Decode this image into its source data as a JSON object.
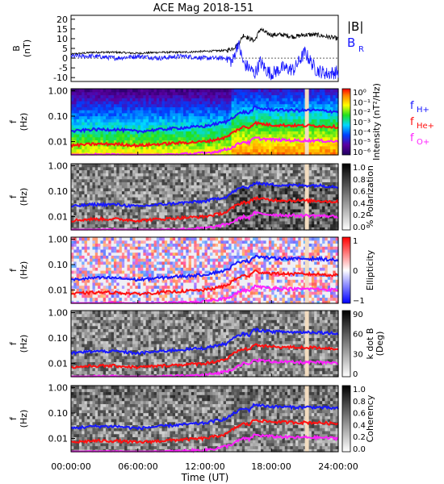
{
  "title": "ACE Mag 2018-151",
  "time_axis": {
    "label": "Time (UT)",
    "ticks": [
      "00:00:00",
      "06:00:00",
      "12:00:00",
      "18:00:00",
      "24:00:00"
    ]
  },
  "colors": {
    "black": "#000000",
    "blue": "#1818ff",
    "red": "#ff1010",
    "magenta": "#ff20ff",
    "gap": "#f2dcc0"
  },
  "chart_data": [
    {
      "type": "line",
      "panel": "B",
      "ylabel": [
        "B",
        "(nT)"
      ],
      "ylim": [
        -12,
        22
      ],
      "y_ticks": [
        "20",
        "15",
        "10",
        "5",
        "0",
        "-5",
        "-10"
      ],
      "legend": [
        {
          "name": "|B|",
          "color": "#000000"
        },
        {
          "name": "B",
          "sub": "R",
          "color": "#1818ff"
        }
      ],
      "x": [
        0,
        2,
        4,
        6,
        8,
        10,
        12,
        14,
        14.5,
        15,
        15.5,
        16,
        16.5,
        17,
        17.5,
        18,
        19,
        20,
        21,
        22,
        23,
        24
      ],
      "series": [
        {
          "name": "|B|",
          "values": [
            2,
            3,
            3,
            2.5,
            3,
            3,
            3.5,
            4,
            5,
            7,
            12,
            10,
            9,
            15,
            13,
            12,
            12,
            11,
            12,
            12,
            11,
            10
          ]
        },
        {
          "name": "B",
          "values": [
            1,
            1,
            0,
            1,
            0,
            1,
            0,
            0,
            -2,
            8,
            -3,
            -5,
            -8,
            -2,
            -6,
            -8,
            -5,
            -6,
            3,
            -6,
            -8,
            -7
          ]
        }
      ]
    },
    {
      "type": "heatmap",
      "panel": "intensity",
      "ylabel": [
        "f",
        "(Hz)"
      ],
      "y_ticks": [
        "1.00",
        "0.10",
        "0.01"
      ],
      "colorbar": {
        "label": "Intensity (nT²/Hz)",
        "ticks": [
          "10⁰",
          "10⁻¹",
          "10⁻²",
          "10⁻³",
          "10⁻⁴",
          "10⁻⁵",
          "10⁻⁶"
        ]
      },
      "legend": [
        {
          "name": "f",
          "sub": "H+",
          "color": "#1818ff"
        },
        {
          "name": "f",
          "sub": "He+",
          "color": "#ff1010"
        },
        {
          "name": "f",
          "sub": "O+",
          "color": "#ff20ff"
        }
      ]
    },
    {
      "type": "heatmap",
      "panel": "polarization",
      "ylabel": [
        "f",
        "(Hz)"
      ],
      "y_ticks": [
        "1.00",
        "0.10",
        "0.01"
      ],
      "colorbar": {
        "label": "% Polarization",
        "ticks": [
          "1.0",
          "0.8",
          "0.6",
          "0.4",
          "0.2",
          "0.0"
        ]
      }
    },
    {
      "type": "heatmap",
      "panel": "ellipticity",
      "ylabel": [
        "f",
        "(Hz)"
      ],
      "y_ticks": [
        "1.00",
        "0.10",
        "0.01"
      ],
      "colorbar": {
        "label": "Ellipticity",
        "ticks": [
          "1",
          "0",
          "−1"
        ]
      }
    },
    {
      "type": "heatmap",
      "panel": "kdotb",
      "ylabel": [
        "f",
        "(Hz)"
      ],
      "y_ticks": [
        "1.00",
        "0.10",
        "0.01"
      ],
      "colorbar": {
        "label": "k dot B",
        "label2": "(Deg)",
        "ticks": [
          "90",
          "60",
          "30",
          "0"
        ]
      }
    },
    {
      "type": "heatmap",
      "panel": "coherency",
      "ylabel": [
        "f",
        "(Hz)"
      ],
      "y_ticks": [
        "1.00",
        "0.10",
        "0.01"
      ],
      "colorbar": {
        "label": "Coherency",
        "ticks": [
          "1.0",
          "0.8",
          "0.6",
          "0.4",
          "0.2",
          "0.0"
        ]
      }
    },
    {
      "type": "line",
      "panel": "gyrofrequencies",
      "x": [
        0,
        2,
        4,
        6,
        8,
        10,
        12,
        13,
        14,
        14.5,
        15,
        15.5,
        16,
        16.5,
        17,
        18,
        20,
        22,
        24
      ],
      "series": [
        {
          "name": "f_H+",
          "values": [
            0.025,
            0.03,
            0.03,
            0.025,
            0.03,
            0.035,
            0.04,
            0.05,
            0.06,
            0.09,
            0.12,
            0.15,
            0.13,
            0.22,
            0.2,
            0.18,
            0.17,
            0.17,
            0.15
          ]
        },
        {
          "name": "f_He+",
          "values": [
            0.007,
            0.008,
            0.008,
            0.007,
            0.008,
            0.009,
            0.01,
            0.012,
            0.015,
            0.022,
            0.03,
            0.038,
            0.035,
            0.055,
            0.05,
            0.045,
            0.043,
            0.042,
            0.038
          ]
        },
        {
          "name": "f_O+",
          "values": [
            0.0025,
            0.003,
            0.003,
            0.0025,
            0.003,
            0.0032,
            0.0035,
            0.004,
            0.005,
            0.006,
            0.008,
            0.01,
            0.009,
            0.014,
            0.013,
            0.012,
            0.011,
            0.011,
            0.01
          ]
        }
      ]
    }
  ]
}
